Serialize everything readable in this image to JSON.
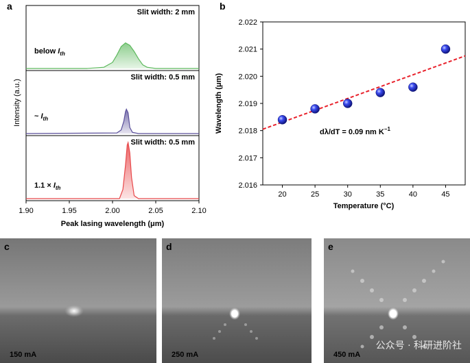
{
  "panels": {
    "a": "a",
    "b": "b",
    "c": "c",
    "d": "d",
    "e": "e"
  },
  "colors": {
    "green": "#5cb85c",
    "purple": "#5a4f9a",
    "red": "#e8484a",
    "fit": "#e8202a",
    "marker": "#1a27c9"
  },
  "chart_data": [
    {
      "type": "line",
      "panel": "a",
      "xlabel": "Peak lasing wavelength (μm)",
      "ylabel": "Intensity (a.u.)",
      "xlim": [
        1.9,
        2.1
      ],
      "x_ticks": [
        "1.90",
        "1.95",
        "2.00",
        "2.05",
        "2.10"
      ],
      "series": [
        {
          "name": "below I_th",
          "label_main": "below ",
          "label_italic": "I",
          "label_sub": "th",
          "slit": "Slit width: 2 mm",
          "x": [
            1.9,
            1.97,
            1.99,
            2.0,
            2.005,
            2.01,
            2.015,
            2.02,
            2.025,
            2.03,
            2.035,
            2.04,
            2.05,
            2.1
          ],
          "y": [
            0.0,
            0.0,
            0.02,
            0.1,
            0.22,
            0.36,
            0.42,
            0.38,
            0.28,
            0.16,
            0.06,
            0.02,
            0.0,
            0.0
          ]
        },
        {
          "name": "~ I_th",
          "label_main": "~ ",
          "label_italic": "I",
          "label_sub": "th",
          "slit": "Slit width: 0.5 mm",
          "x": [
            1.9,
            2.005,
            2.01,
            2.013,
            2.015,
            2.016,
            2.018,
            2.02,
            2.023,
            2.03,
            2.1
          ],
          "y": [
            0.0,
            0.01,
            0.06,
            0.2,
            0.36,
            0.4,
            0.34,
            0.1,
            0.02,
            0.0,
            0.0
          ]
        },
        {
          "name": "1.1 x I_th",
          "label_main": "1.1 × ",
          "label_italic": "I",
          "label_sub": "th",
          "slit": "Slit width: 0.5 mm",
          "x": [
            1.9,
            2.008,
            2.012,
            2.015,
            2.017,
            2.018,
            2.02,
            2.022,
            2.025,
            2.03,
            2.1
          ],
          "y": [
            0.0,
            0.0,
            0.15,
            0.55,
            0.88,
            0.92,
            0.75,
            0.35,
            0.05,
            0.0,
            0.0
          ]
        }
      ]
    },
    {
      "type": "scatter",
      "panel": "b",
      "xlabel": "Temperature (°C)",
      "ylabel": "Wavelength (μm)",
      "xlim": [
        17,
        48
      ],
      "ylim": [
        2.016,
        2.022
      ],
      "x_ticks": [
        "20",
        "25",
        "30",
        "35",
        "40",
        "45"
      ],
      "y_ticks": [
        "2.016",
        "2.017",
        "2.018",
        "2.019",
        "2.020",
        "2.021",
        "2.022"
      ],
      "x": [
        20,
        25,
        30,
        35,
        40,
        45
      ],
      "y": [
        2.0184,
        2.0188,
        2.019,
        2.0194,
        2.0196,
        2.021
      ],
      "fit": {
        "x": [
          17,
          48
        ],
        "y": [
          2.01805,
          2.02075
        ]
      },
      "annotation": {
        "main": "dλ/dT = 0.09 nm K",
        "sup": "−1"
      }
    }
  ],
  "images": [
    {
      "panel": "c",
      "caption": "150 mA"
    },
    {
      "panel": "d",
      "caption": "250 mA"
    },
    {
      "panel": "e",
      "caption": "450 mA"
    }
  ],
  "watermark": "公众号 · 科研进阶社"
}
